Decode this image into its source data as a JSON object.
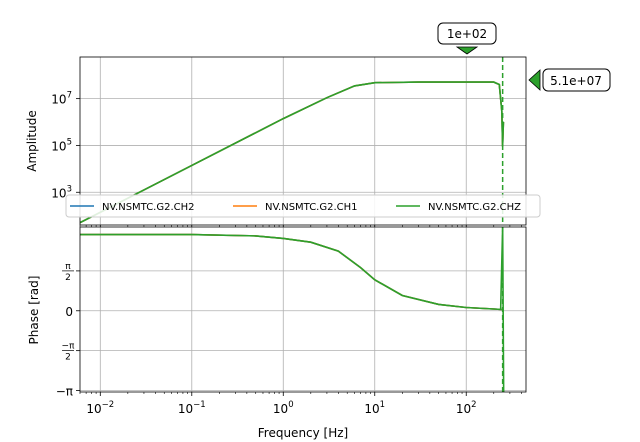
{
  "chart_data": [
    {
      "panel": "amplitude",
      "type": "line",
      "x_scale": "log",
      "y_scale": "log",
      "ylabel": "Amplitude",
      "y_ticks": [
        "10",
        "10",
        "10"
      ],
      "y_tick_exps": [
        "3",
        "5",
        "7"
      ],
      "y_tick_values": [
        1000,
        100000,
        10000000
      ],
      "x_range": [
        0.006,
        450
      ],
      "y_range": [
        40,
        600000000
      ],
      "grid": true,
      "legend_placement": "bottom",
      "series": [
        {
          "name": "NV.NSMTC.G2.CH2",
          "color": "#1f77b4"
        },
        {
          "name": "NV.NSMTC.G2.CH1",
          "color": "#ff7f0e"
        },
        {
          "name": "NV.NSMTC.G2.CHZ",
          "color": "#2ca02c"
        }
      ],
      "curve": {
        "x": [
          0.006,
          0.01,
          0.1,
          1,
          3,
          6,
          10,
          30,
          100,
          200,
          230,
          245,
          250,
          255
        ],
        "y": [
          50,
          140,
          14000,
          1400000,
          11000000,
          35000000,
          48000000,
          51000000,
          51000000,
          51000000,
          40000000,
          3000000,
          90000,
          1000000
        ]
      },
      "annotations": [
        {
          "label": "1e+02",
          "value": 100,
          "axis": "x",
          "color": "#2ca02c"
        },
        {
          "label": "5.1e+07",
          "value": 51000000,
          "axis": "y",
          "color": "#2ca02c"
        }
      ],
      "nyquist_marker": {
        "x": 250,
        "color": "#2ca02c",
        "style": "dashed"
      }
    },
    {
      "panel": "phase",
      "type": "line",
      "x_scale": "log",
      "y_scale": "linear",
      "xlabel": "Frequency [Hz]",
      "ylabel": "Phase [rad]",
      "x_ticks": [
        "10",
        "10",
        "10",
        "10",
        "10"
      ],
      "x_tick_exps": [
        "−2",
        "−1",
        "0",
        "1",
        "2"
      ],
      "x_tick_values": [
        0.01,
        0.1,
        1,
        10,
        100
      ],
      "y_ticks": [
        "π/2",
        "0",
        "−π/2",
        "−π"
      ],
      "y_tick_values": [
        1.5708,
        0,
        -1.5708,
        -3.1416
      ],
      "y_range": [
        -3.2,
        3.3
      ],
      "grid": true,
      "curve": {
        "x": [
          0.006,
          0.1,
          0.5,
          1,
          2,
          4,
          7,
          10,
          20,
          50,
          100,
          200,
          245
        ],
        "y": [
          3.0,
          3.0,
          2.95,
          2.85,
          2.7,
          2.35,
          1.7,
          1.22,
          0.6,
          0.25,
          0.13,
          0.07,
          0.05
        ]
      },
      "nyquist_marker": {
        "x": 250,
        "color": "#2ca02c",
        "style": "dashed"
      }
    }
  ]
}
